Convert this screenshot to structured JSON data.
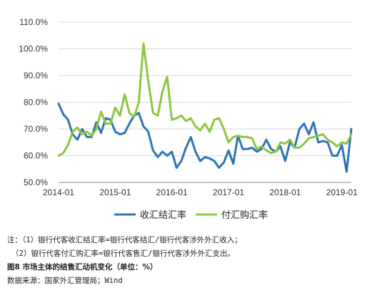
{
  "chart_data": {
    "type": "line",
    "ylim": [
      50,
      110
    ],
    "y_ticks": [
      "110.0%",
      "100.0%",
      "90.0%",
      "80.0%",
      "70.0%",
      "60.0%",
      "50.0%"
    ],
    "y_tick_values": [
      110,
      100,
      90,
      80,
      70,
      60,
      50
    ],
    "x_ticks": [
      "2014-01",
      "2015-01",
      "2016-01",
      "2017-01",
      "2018-01",
      "2019-01"
    ],
    "x_tick_index": [
      0,
      12,
      24,
      36,
      48,
      60
    ],
    "x": [
      "2014-01",
      "2014-02",
      "2014-03",
      "2014-04",
      "2014-05",
      "2014-06",
      "2014-07",
      "2014-08",
      "2014-09",
      "2014-10",
      "2014-11",
      "2014-12",
      "2015-01",
      "2015-02",
      "2015-03",
      "2015-04",
      "2015-05",
      "2015-06",
      "2015-07",
      "2015-08",
      "2015-09",
      "2015-10",
      "2015-11",
      "2015-12",
      "2016-01",
      "2016-02",
      "2016-03",
      "2016-04",
      "2016-05",
      "2016-06",
      "2016-07",
      "2016-08",
      "2016-09",
      "2016-10",
      "2016-11",
      "2016-12",
      "2017-01",
      "2017-02",
      "2017-03",
      "2017-04",
      "2017-05",
      "2017-06",
      "2017-07",
      "2017-08",
      "2017-09",
      "2017-10",
      "2017-11",
      "2017-12",
      "2018-01",
      "2018-02",
      "2018-03",
      "2018-04",
      "2018-05",
      "2018-06",
      "2018-07",
      "2018-08",
      "2018-09",
      "2018-10",
      "2018-11",
      "2018-12",
      "2019-01",
      "2019-02",
      "2019-03"
    ],
    "series": [
      {
        "name": "收汇结汇率",
        "color": "#2e75b6",
        "values": [
          79.5,
          75.5,
          73.5,
          68,
          66,
          70,
          67,
          67,
          72.5,
          68.5,
          74,
          73.5,
          69,
          68,
          68.5,
          72,
          75,
          76,
          71,
          69,
          62,
          59.5,
          61.5,
          60,
          61.5,
          55.5,
          58,
          63,
          67,
          61.5,
          58,
          59.5,
          59,
          58,
          55.5,
          57.5,
          62,
          57,
          67.5,
          62.5,
          62.5,
          63,
          61.5,
          62.5,
          66,
          62.5,
          61.5,
          63.5,
          58,
          65,
          63,
          70,
          72,
          68,
          72.5,
          65,
          65.5,
          65,
          60,
          60,
          64,
          54,
          70
        ]
      },
      {
        "name": "付汇购汇率",
        "color": "#8dc63f",
        "values": [
          60,
          61,
          64,
          69,
          70.5,
          68,
          69,
          67.5,
          70,
          76.5,
          72,
          72,
          78,
          75,
          83,
          76,
          74.5,
          80,
          102,
          88,
          76,
          75,
          84,
          89.5,
          73.5,
          74,
          75,
          73,
          74,
          71,
          69.5,
          72,
          69,
          73.5,
          74,
          70,
          65,
          67,
          67.5,
          67,
          67,
          66.5,
          62.5,
          63.5,
          62,
          61,
          61.5,
          65,
          64.5,
          66,
          63,
          63,
          64.5,
          66.5,
          67,
          67.5,
          68,
          66,
          65,
          63.5,
          65,
          64.5,
          68
        ]
      }
    ]
  },
  "legend": [
    "收汇结汇率",
    "付汇购汇率"
  ],
  "notes": {
    "note1": "注：（1）银行代客收汇结汇率=银行代客结汇/银行代客涉外外汇收入；",
    "note2": "（2）银行代客付汇购汇率=银行代客售汇/银行代客涉外外汇支出。",
    "figure_title": "图8  市场主体的结售汇动机变化（单位：%）",
    "source": "数据来源：国家外汇管理局；Wind"
  }
}
